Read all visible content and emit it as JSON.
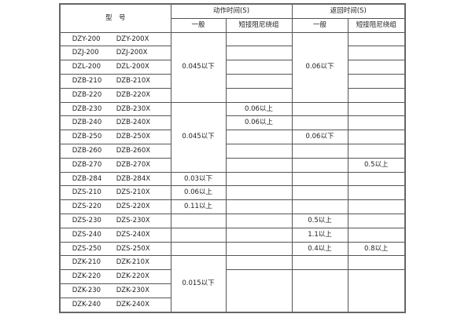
{
  "header": {
    "model": "型　号",
    "action_time": "动作时间(S)",
    "return_time": "返回时间(S)",
    "general": "一般",
    "short_damping": "短接阻尼绕组"
  },
  "rows": [
    {
      "a": "DZY-200",
      "b": "DZY-200X"
    },
    {
      "a": "DZJ-200",
      "b": "DZJ-200X"
    },
    {
      "a": "DZL-200",
      "b": "DZL-200X"
    },
    {
      "a": "DZB-210",
      "b": "DZB-210X"
    },
    {
      "a": "DZB-220",
      "b": "DZB-220X"
    },
    {
      "a": "DZB-230",
      "b": "DZB-230X"
    },
    {
      "a": "DZB-240",
      "b": "DZB-240X"
    },
    {
      "a": "DZB-250",
      "b": "DZB-250X"
    },
    {
      "a": "DZB-260",
      "b": "DZB-260X"
    },
    {
      "a": "DZB-270",
      "b": "DZB-270X"
    },
    {
      "a": "DZB-284",
      "b": "DZB-284X"
    },
    {
      "a": "DZS-210",
      "b": "DZS-210X"
    },
    {
      "a": "DZS-220",
      "b": "DZS-220X"
    },
    {
      "a": "DZS-230",
      "b": "DZS-230X"
    },
    {
      "a": "DZS-240",
      "b": "DZS-240X"
    },
    {
      "a": "DZS-250",
      "b": "DZS-250X"
    },
    {
      "a": "DZK-210",
      "b": "DZK-210X"
    },
    {
      "a": "DZK-220",
      "b": "DZK-220X"
    },
    {
      "a": "DZK-230",
      "b": "DZK-230X"
    },
    {
      "a": "DZK-240",
      "b": "DZK-240X"
    }
  ],
  "values": {
    "act_gen_g1": "0.045以下",
    "act_gen_g2": "0.045以下",
    "act_gen_284": "0.03以下",
    "act_gen_s210": "0.06以上",
    "act_gen_s220": "0.11以上",
    "act_gen_dzk": "0.015以下",
    "act_short_230": "0.06以上",
    "act_short_240": "0.06以上",
    "ret_gen_g1": "0.06以下",
    "ret_gen_250": "0.06以下",
    "ret_gen_s230": "0.5以上",
    "ret_gen_s240": "1.1以上",
    "ret_gen_s250": "0.4以上",
    "ret_short_270": "0.5以上",
    "ret_short_s250": "0.8以上"
  }
}
